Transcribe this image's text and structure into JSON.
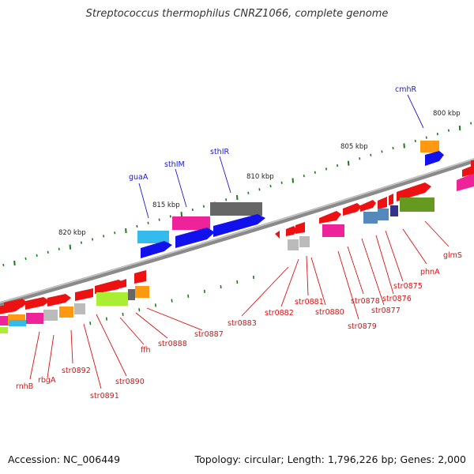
{
  "title": "Streptococcus thermophilus CNRZ1066, complete genome",
  "footer": {
    "accession": "Accession: NC_006449",
    "summary": "Topology: circular; Length: 1,796,226 bp; Genes: 2,000"
  },
  "colors": {
    "backbone": "#8a8a8a",
    "tick": "#1e7a1e",
    "label_red": "#dd1111",
    "label_blue": "#1a1acc",
    "gene_red": "#ee1111",
    "gene_blue": "#1111ee",
    "gene_cyan": "#33bbee",
    "gene_magenta": "#ee2299",
    "gene_gray": "#666666",
    "gene_lightgray": "#bbbbbb",
    "gene_orange": "#ff9911",
    "gene_green": "#669922",
    "gene_lime": "#aaee33",
    "gene_steel": "#5588bb",
    "gene_navy": "#333388"
  },
  "scale_labels": [
    "800 kbp",
    "805 kbp",
    "810 kbp",
    "815 kbp",
    "820 kbp"
  ],
  "gene_labels_red": [
    "rnhB",
    "rbgA",
    "str0892",
    "str0891",
    "str0890",
    "ffh",
    "str0888",
    "str0887",
    "str0883",
    "str0882",
    "str0881",
    "str0880",
    "str0879",
    "str0878",
    "str0877",
    "str0876",
    "str0875",
    "phnA",
    "glmS"
  ],
  "gene_labels_blue": [
    "guaA",
    "sthIM",
    "sthIR",
    "cmhR"
  ]
}
